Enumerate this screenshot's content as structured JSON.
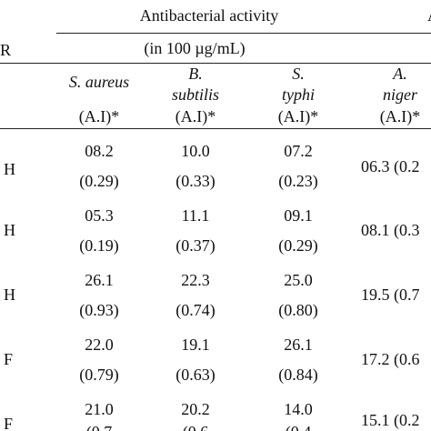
{
  "header": {
    "group_title": "Antibacterial activity",
    "group_subtitle": "(in 100 µg/mL)",
    "r_label": "R",
    "cut_off_header": "A"
  },
  "columns": [
    {
      "name_line1": "S. aureus",
      "name_line2": "",
      "unit": "(A.I)*"
    },
    {
      "name_line1": "B.",
      "name_line2": "subtilis",
      "unit": "(A.I)*"
    },
    {
      "name_line1": "S.",
      "name_line2": "typhi",
      "unit": "(A.I)*"
    },
    {
      "name_line1": "A.",
      "name_line2": "niger",
      "unit": "(A.I)*"
    }
  ],
  "rows": [
    {
      "r": "H",
      "v1": "08.2",
      "a1": "(0.29)",
      "v2": "10.0",
      "a2": "(0.33)",
      "v3": "07.2",
      "a3": "(0.23)",
      "v4": "06.3 (0.2"
    },
    {
      "r": "H",
      "v1": "05.3",
      "a1": "(0.19)",
      "v2": "11.1",
      "a2": "(0.37)",
      "v3": "09.1",
      "a3": "(0.29)",
      "v4": "08.1 (0.3"
    },
    {
      "r": "H",
      "v1": "26.1",
      "a1": "(0.93)",
      "v2": "22.3",
      "a2": "(0.74)",
      "v3": "25.0",
      "a3": "(0.80)",
      "v4": "19.5 (0.7"
    },
    {
      "r": "F",
      "v1": "22.0",
      "a1": "(0.79)",
      "v2": "19.1",
      "a2": "(0.63)",
      "v3": "26.1",
      "a3": "(0.84)",
      "v4": "17.2 (0.6"
    },
    {
      "r": "F",
      "v1": "21.0",
      "a1": "(0.7",
      "v2": "20.2",
      "a2": "(0.6",
      "v3": "14.0",
      "a3": "(0.4",
      "v4": "15.1 (0.2"
    }
  ]
}
